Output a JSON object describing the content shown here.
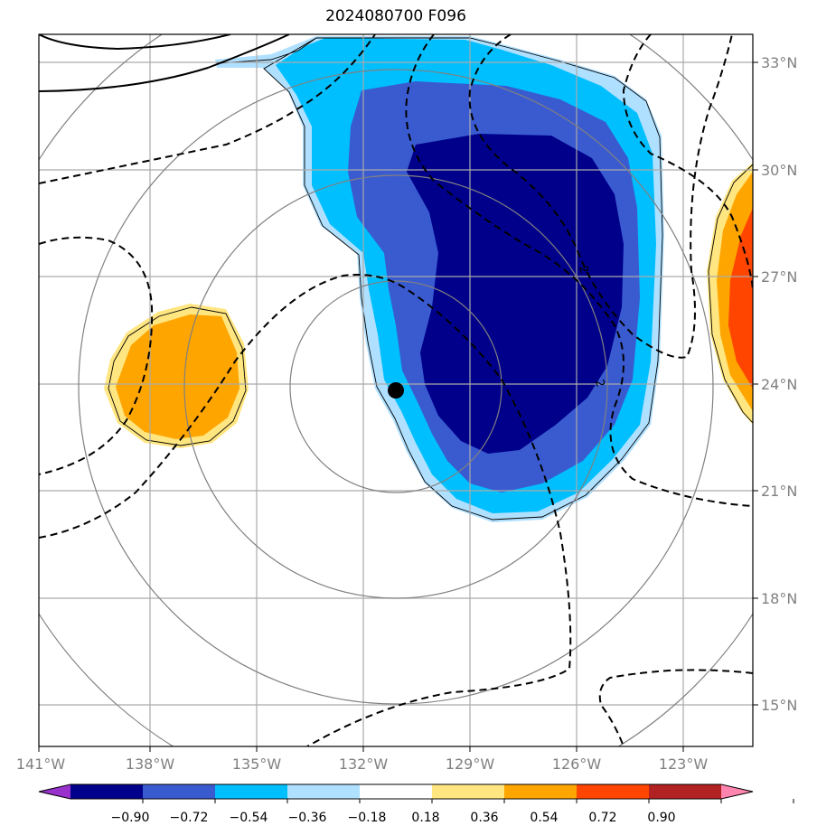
{
  "title": "2024080700 F096",
  "map": {
    "lon_ticks": [
      "141°W",
      "138°W",
      "135°W",
      "132°W",
      "129°W",
      "126°W",
      "123°W"
    ],
    "lat_ticks": [
      "33°N",
      "30°N",
      "27°N",
      "24°N",
      "21°N",
      "18°N",
      "15°N"
    ],
    "lon_range": [
      -141,
      -121
    ],
    "lat_range": [
      14,
      34
    ],
    "center_marker": {
      "lon": -130.9,
      "lat": 23.8
    },
    "contour_labels": [
      "2",
      "2"
    ],
    "colors": {
      "grid": "#aaaaaa",
      "range_rings": "#808080",
      "neg_090": "#00008b",
      "neg_072": "#3a5bd0",
      "neg_054": "#00bfff",
      "neg_036": "#b0e0ff",
      "pos_036": "#ffe680",
      "pos_054": "#ffa500",
      "pos_072": "#ff4500"
    }
  },
  "colorbar": {
    "labels": [
      "−0.90",
      "−0.72",
      "−0.54",
      "−0.36",
      "−0.18",
      "0.18",
      "0.36",
      "0.54",
      "0.72",
      "0.90"
    ],
    "colors": [
      "#9932cc",
      "#00008b",
      "#3a5bd0",
      "#00bfff",
      "#b0e0ff",
      "#ffffff",
      "#ffe680",
      "#ffa500",
      "#ff4500",
      "#b22222",
      "#ff85b0"
    ]
  }
}
